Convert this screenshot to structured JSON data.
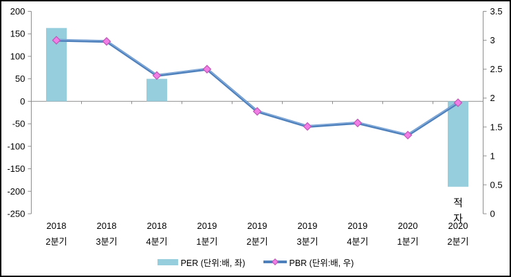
{
  "chart_data": {
    "type": "combo-bar-line",
    "title": "",
    "categories": [
      {
        "year": "2018",
        "quarter": "2분기"
      },
      {
        "year": "2018",
        "quarter": "3분기"
      },
      {
        "year": "2018",
        "quarter": "4분기"
      },
      {
        "year": "2019",
        "quarter": "1분기"
      },
      {
        "year": "2019",
        "quarter": "2분기"
      },
      {
        "year": "2019",
        "quarter": "3분기"
      },
      {
        "year": "2019",
        "quarter": "4분기"
      },
      {
        "year": "2020",
        "quarter": "1분기"
      },
      {
        "year": "2020",
        "quarter": "2분기"
      }
    ],
    "series": [
      {
        "name": "PER (단위:배, 좌)",
        "type": "bar",
        "axis": "left",
        "color": "#97CEDD",
        "values": [
          163,
          null,
          50,
          null,
          null,
          null,
          null,
          null,
          -190
        ]
      },
      {
        "name": "PBR (단위:배, 우)",
        "type": "line",
        "axis": "right",
        "color": "#4E80BC",
        "highlight_color": "#8FB4E0",
        "marker": "diamond",
        "marker_color": "#F07EE6",
        "marker_border": "#BE56B4",
        "values": [
          3.0,
          2.98,
          2.39,
          2.5,
          1.77,
          1.51,
          1.57,
          1.36,
          1.92
        ]
      }
    ],
    "left_axis": {
      "min": -250,
      "max": 200,
      "step": 50,
      "tick_labels": [
        "200",
        "150",
        "100",
        "50",
        "0",
        "-50",
        "-100",
        "-150",
        "-200",
        "-250"
      ]
    },
    "right_axis": {
      "min": 0,
      "max": 3.5,
      "step": 0.5,
      "tick_labels": [
        "3.5",
        "3",
        "2.5",
        "2",
        "1.5",
        "1",
        "0.5",
        "0"
      ]
    },
    "annotations": [
      {
        "text": "적자",
        "category_index": 8,
        "meaning": "deficit label under negative bar"
      }
    ],
    "axis_color": "#8C8C8C",
    "zero_line_color": "#909090",
    "frame_border_color": "#000000",
    "background_color": "#FFFFFF",
    "legend_position": "bottom",
    "grid": "off"
  }
}
